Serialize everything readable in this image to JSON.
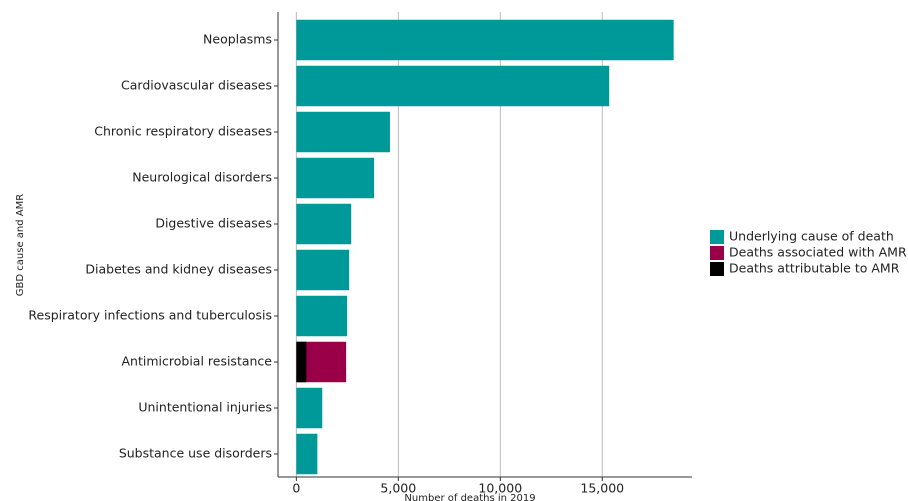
{
  "chart_data": {
    "type": "hbar",
    "y_label": "GBD cause and AMR",
    "x_label": "Number of deaths in 2019",
    "categories": [
      "Neoplasms",
      "Cardiovascular diseases",
      "Chronic respiratory diseases",
      "Neurological disorders",
      "Digestive diseases",
      "Diabetes and kidney diseases",
      "Respiratory infections and tuberculosis",
      "Antimicrobial resistance",
      "Unintentional injuries",
      "Substance use disorders"
    ],
    "series": [
      {
        "name": "Underlying cause of death",
        "color": "#009999",
        "values": [
          18500,
          15340,
          4590,
          3810,
          2690,
          2590,
          2490,
          null,
          1270,
          1030
        ]
      },
      {
        "name": "Deaths associated with AMR",
        "color": "#990047",
        "values": [
          null,
          null,
          null,
          null,
          null,
          null,
          null,
          2440,
          null,
          null
        ]
      },
      {
        "name": "Deaths attributable to AMR",
        "color": "#000000",
        "values": [
          null,
          null,
          null,
          null,
          null,
          null,
          null,
          490,
          null,
          null
        ]
      }
    ],
    "xlim": [
      -900,
      19400
    ],
    "xticks": [
      0,
      {
        "value": 5000,
        "label": "5,000"
      },
      {
        "value": 10000,
        "label": "10,000"
      },
      {
        "value": 15000,
        "label": "15,000"
      }
    ],
    "grid": true,
    "legend": "right"
  }
}
